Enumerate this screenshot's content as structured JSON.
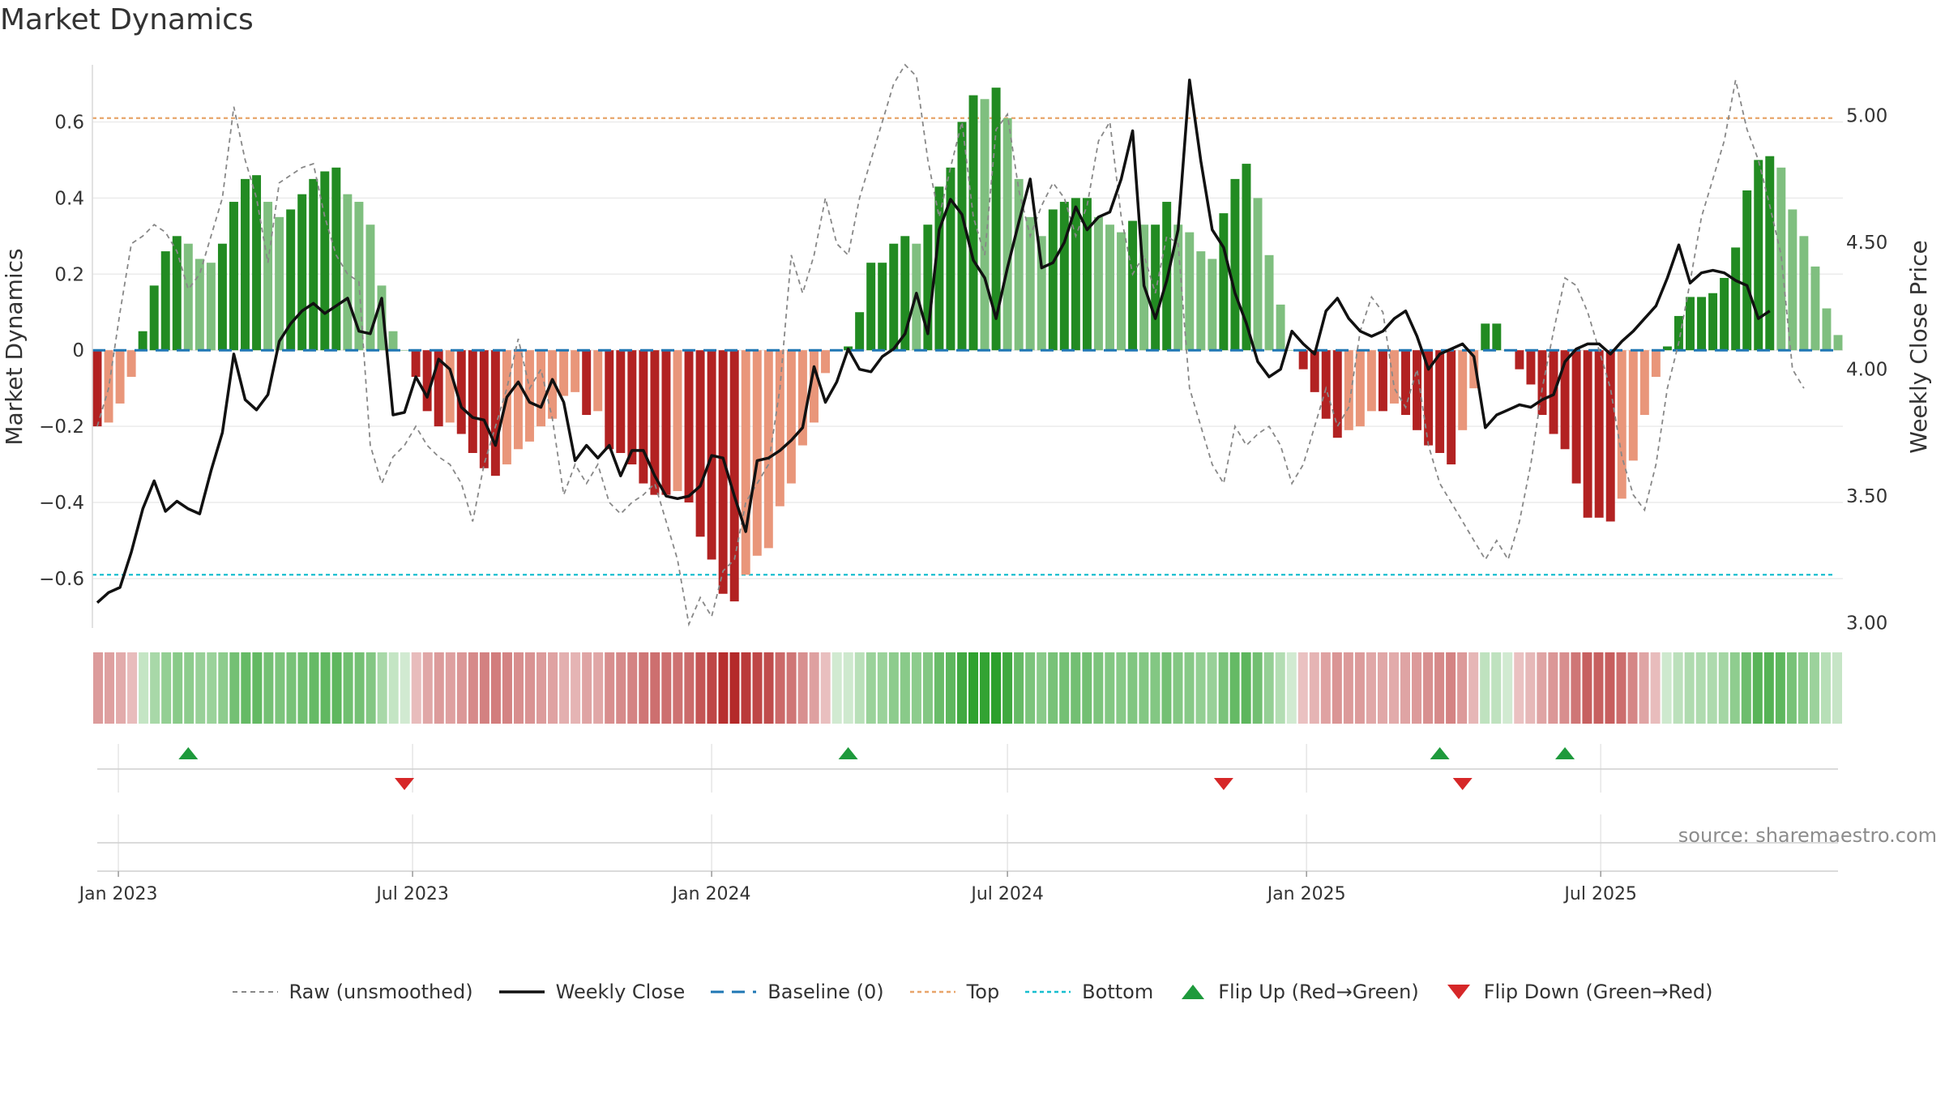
{
  "title": "Market Dynamics",
  "source": "source: sharemaestro.com",
  "colors": {
    "strong_green": "#228b22",
    "light_green": "#7fbf7f",
    "strong_red": "#b22222",
    "light_red": "#e9967a",
    "close": "#111111",
    "raw": "#888888",
    "baseline": "#1f77b4",
    "top": "#e8a56a",
    "bottom": "#17becf",
    "flip_up": "#1e9a3c",
    "flip_down": "#d62728"
  },
  "legend": {
    "raw": "Raw (unsmoothed)",
    "close": "Weekly Close",
    "baseline": "Baseline (0)",
    "top": "Top",
    "bottom": "Bottom",
    "flip_up": "Flip Up (Red→Green)",
    "flip_down": "Flip Down (Green→Red)"
  },
  "chart_data": {
    "type": "bar",
    "title": "Market Dynamics",
    "ylabel": "Market Dynamics",
    "y2label": "Weekly Close Price",
    "ylim": [
      -0.73,
      0.75
    ],
    "y2lim": [
      2.98,
      5.2
    ],
    "yticks": [
      0.6,
      0.4,
      0.2,
      0,
      -0.2,
      -0.4,
      -0.6
    ],
    "yticklabels": [
      "0.6",
      "0.4",
      "0.2",
      "0",
      "−0.2",
      "−0.4",
      "−0.6"
    ],
    "y2ticks": [
      5.0,
      4.5,
      4.0,
      3.5,
      3.0
    ],
    "y2ticklabels": [
      "5.00",
      "4.50",
      "4.00",
      "3.50",
      "3.00"
    ],
    "top_level": 0.61,
    "bottom_level": -0.59,
    "baseline": 0,
    "x_start": "2022-12-19",
    "week_step": 7,
    "xticks": [
      {
        "date": "2023-01-01",
        "label": "Jan 2023"
      },
      {
        "date": "2023-07-01",
        "label": "Jul 2023"
      },
      {
        "date": "2024-01-01",
        "label": "Jan 2024"
      },
      {
        "date": "2024-07-01",
        "label": "Jul 2024"
      },
      {
        "date": "2025-01-01",
        "label": "Jan 2025"
      },
      {
        "date": "2025-07-01",
        "label": "Jul 2025"
      }
    ],
    "momentum": [
      -0.2,
      -0.19,
      -0.14,
      -0.07,
      0.05,
      0.17,
      0.26,
      0.3,
      0.28,
      0.24,
      0.23,
      0.28,
      0.39,
      0.45,
      0.46,
      0.39,
      0.35,
      0.37,
      0.41,
      0.45,
      0.47,
      0.48,
      0.41,
      0.39,
      0.33,
      0.17,
      0.05,
      0,
      -0.07,
      -0.16,
      -0.2,
      -0.19,
      -0.22,
      -0.27,
      -0.31,
      -0.33,
      -0.3,
      -0.26,
      -0.24,
      -0.2,
      -0.18,
      -0.12,
      -0.11,
      -0.17,
      -0.16,
      -0.26,
      -0.27,
      -0.3,
      -0.35,
      -0.38,
      -0.38,
      -0.37,
      -0.4,
      -0.49,
      -0.55,
      -0.64,
      -0.66,
      -0.59,
      -0.54,
      -0.52,
      -0.41,
      -0.35,
      -0.25,
      -0.19,
      -0.06,
      0,
      0.01,
      0.1,
      0.23,
      0.23,
      0.28,
      0.3,
      0.28,
      0.33,
      0.43,
      0.48,
      0.6,
      0.67,
      0.66,
      0.69,
      0.61,
      0.45,
      0.35,
      0.3,
      0.37,
      0.39,
      0.4,
      0.4,
      0.35,
      0.33,
      0.31,
      0.34,
      0.33,
      0.33,
      0.39,
      0.33,
      0.31,
      0.26,
      0.24,
      0.36,
      0.45,
      0.49,
      0.4,
      0.25,
      0.12,
      0,
      -0.05,
      -0.11,
      -0.18,
      -0.23,
      -0.21,
      -0.2,
      -0.16,
      -0.16,
      -0.14,
      -0.17,
      -0.21,
      -0.25,
      -0.27,
      -0.3,
      -0.21,
      -0.1,
      0.07,
      0.07,
      0,
      -0.05,
      -0.09,
      -0.17,
      -0.22,
      -0.26,
      -0.35,
      -0.44,
      -0.44,
      -0.45,
      -0.39,
      -0.29,
      -0.17,
      -0.07,
      0.01,
      0.09,
      0.14,
      0.14,
      0.15,
      0.19,
      0.27,
      0.42,
      0.5,
      0.51,
      0.48,
      0.37,
      0.3,
      0.22,
      0.11,
      0.04
    ],
    "raw": [
      -0.2,
      -0.1,
      0.1,
      0.28,
      0.3,
      0.33,
      0.31,
      0.26,
      0.16,
      0.2,
      0.3,
      0.4,
      0.64,
      0.5,
      0.4,
      0.23,
      0.44,
      0.46,
      0.48,
      0.49,
      0.35,
      0.25,
      0.2,
      0.18,
      -0.25,
      -0.35,
      -0.28,
      -0.25,
      -0.2,
      -0.25,
      -0.28,
      -0.3,
      -0.35,
      -0.45,
      -0.3,
      -0.2,
      -0.1,
      0.03,
      -0.1,
      -0.05,
      -0.18,
      -0.38,
      -0.3,
      -0.35,
      -0.3,
      -0.4,
      -0.43,
      -0.4,
      -0.38,
      -0.35,
      -0.45,
      -0.55,
      -0.72,
      -0.65,
      -0.7,
      -0.58,
      -0.55,
      -0.4,
      -0.35,
      -0.3,
      -0.1,
      0.25,
      0.15,
      0.25,
      0.4,
      0.28,
      0.25,
      0.4,
      0.5,
      0.6,
      0.7,
      0.75,
      0.72,
      0.5,
      0.35,
      0.48,
      0.6,
      0.35,
      0.25,
      0.58,
      0.62,
      0.42,
      0.3,
      0.38,
      0.44,
      0.4,
      0.3,
      0.38,
      0.55,
      0.6,
      0.35,
      0.2,
      0.25,
      0.15,
      0.3,
      0.28,
      -0.1,
      -0.2,
      -0.3,
      -0.35,
      -0.2,
      -0.25,
      -0.22,
      -0.2,
      -0.25,
      -0.35,
      -0.3,
      -0.2,
      -0.1,
      -0.2,
      -0.15,
      0.05,
      0.14,
      0.1,
      -0.1,
      -0.15,
      -0.05,
      -0.25,
      -0.35,
      -0.4,
      -0.45,
      -0.5,
      -0.55,
      -0.5,
      -0.55,
      -0.45,
      -0.3,
      -0.1,
      0.05,
      0.19,
      0.17,
      0.1,
      0,
      -0.1,
      -0.28,
      -0.38,
      -0.42,
      -0.3,
      -0.1,
      0.02,
      0.18,
      0.35,
      0.45,
      0.55,
      0.71,
      0.58,
      0.5,
      0.38,
      0.25,
      -0.05,
      -0.1
    ],
    "close": [
      3.08,
      3.12,
      3.14,
      3.28,
      3.45,
      3.56,
      3.44,
      3.48,
      3.45,
      3.43,
      3.6,
      3.75,
      4.06,
      3.88,
      3.84,
      3.9,
      4.11,
      4.18,
      4.23,
      4.26,
      4.22,
      4.25,
      4.28,
      4.15,
      4.14,
      4.28,
      3.82,
      3.83,
      3.97,
      3.89,
      4.04,
      4.0,
      3.85,
      3.81,
      3.8,
      3.7,
      3.89,
      3.95,
      3.87,
      3.85,
      3.96,
      3.87,
      3.64,
      3.7,
      3.65,
      3.7,
      3.58,
      3.68,
      3.68,
      3.58,
      3.5,
      3.49,
      3.5,
      3.54,
      3.66,
      3.65,
      3.5,
      3.36,
      3.64,
      3.65,
      3.68,
      3.72,
      3.77,
      4.01,
      3.87,
      3.95,
      4.08,
      4.0,
      3.99,
      4.05,
      4.08,
      4.14,
      4.3,
      4.14,
      4.55,
      4.67,
      4.61,
      4.43,
      4.36,
      4.2,
      4.4,
      4.58,
      4.75,
      4.4,
      4.42,
      4.5,
      4.64,
      4.55,
      4.6,
      4.62,
      4.75,
      4.94,
      4.33,
      4.2,
      4.35,
      4.55,
      5.14,
      4.82,
      4.55,
      4.48,
      4.3,
      4.18,
      4.03,
      3.97,
      4.0,
      4.15,
      4.1,
      4.06,
      4.23,
      4.28,
      4.2,
      4.15,
      4.13,
      4.15,
      4.2,
      4.23,
      4.13,
      4.0,
      4.06,
      4.08,
      4.1,
      4.05,
      3.77,
      3.82,
      3.84,
      3.86,
      3.85,
      3.88,
      3.9,
      4.03,
      4.08,
      4.1,
      4.1,
      4.06,
      4.11,
      4.15,
      4.2,
      4.25,
      4.36,
      4.49,
      4.34,
      4.38,
      4.39,
      4.38,
      4.35,
      4.33,
      4.2,
      4.23
    ]
  },
  "flips": {
    "up": [
      "2023-02-13",
      "2024-03-25",
      "2025-03-24",
      "2025-06-09"
    ],
    "down": [
      "2023-06-26",
      "2024-11-11",
      "2025-04-07"
    ]
  }
}
